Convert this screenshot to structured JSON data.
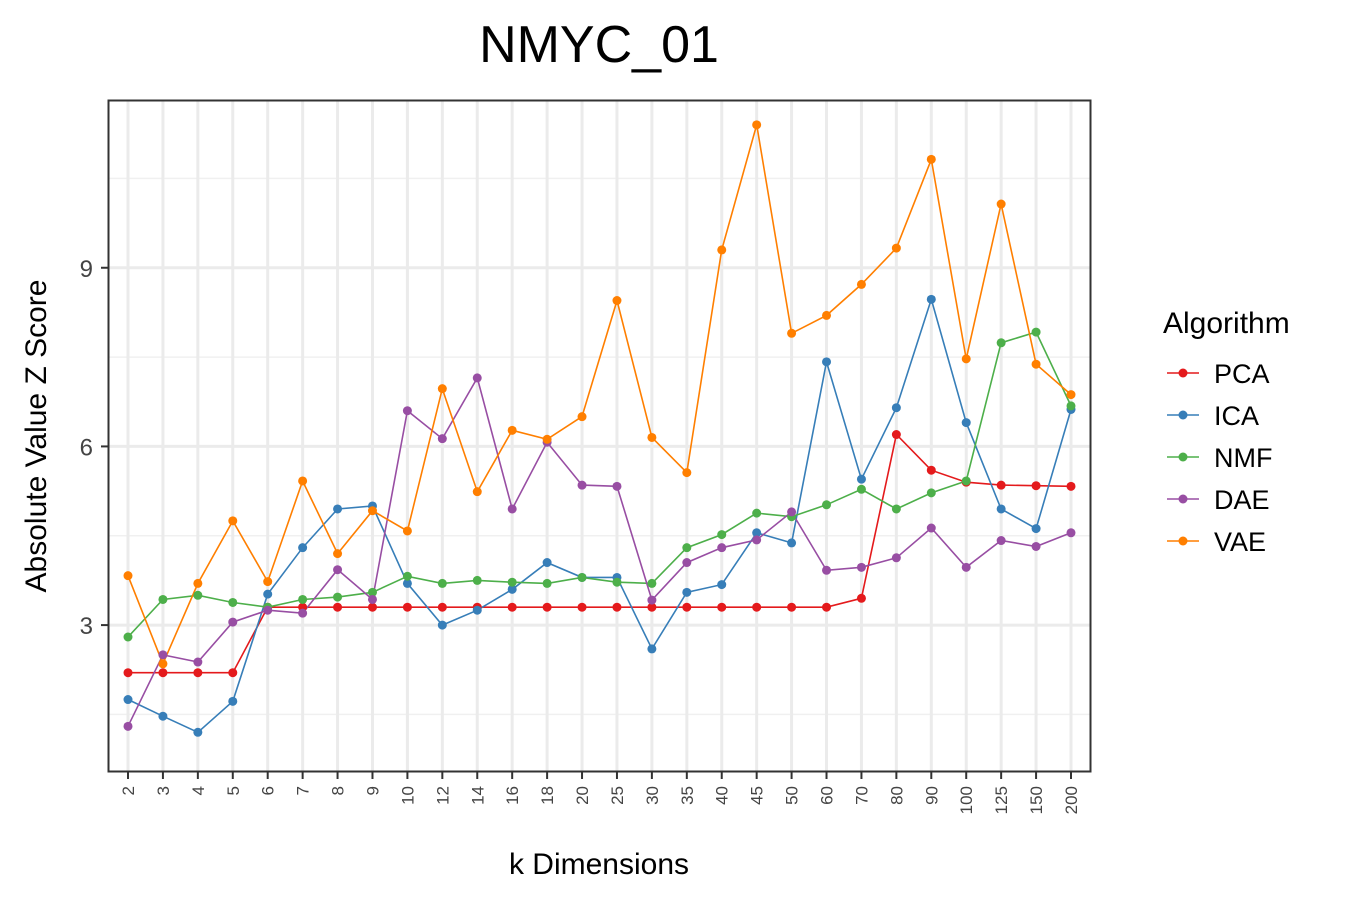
{
  "chart_data": {
    "type": "line",
    "title": "NMYC_01",
    "xlabel": "k Dimensions",
    "ylabel": "Absolute Value Z Score",
    "categories": [
      "2",
      "3",
      "4",
      "5",
      "6",
      "7",
      "8",
      "9",
      "10",
      "12",
      "14",
      "16",
      "18",
      "20",
      "25",
      "30",
      "35",
      "40",
      "45",
      "50",
      "60",
      "70",
      "80",
      "90",
      "100",
      "125",
      "150",
      "200"
    ],
    "ylim": [
      0.55,
      11.8
    ],
    "yticks": [
      3,
      6,
      9
    ],
    "grid": true,
    "legend": {
      "title": "Algorithm",
      "position": "right"
    },
    "series": [
      {
        "name": "PCA",
        "color": "#E41A1C",
        "values": [
          2.2,
          2.2,
          2.2,
          2.2,
          3.3,
          3.3,
          3.3,
          3.3,
          3.3,
          3.3,
          3.3,
          3.3,
          3.3,
          3.3,
          3.3,
          3.3,
          3.3,
          3.3,
          3.3,
          3.3,
          3.3,
          3.45,
          6.2,
          5.6,
          5.4,
          5.35,
          5.34,
          5.33
        ]
      },
      {
        "name": "ICA",
        "color": "#377EB8",
        "values": [
          1.75,
          1.47,
          1.2,
          1.72,
          3.52,
          4.3,
          4.95,
          5.0,
          3.7,
          3.0,
          3.25,
          3.6,
          4.05,
          3.8,
          3.8,
          2.6,
          3.55,
          3.68,
          4.55,
          4.38,
          7.42,
          5.45,
          6.65,
          8.47,
          6.4,
          4.95,
          4.62,
          6.62
        ]
      },
      {
        "name": "NMF",
        "color": "#4DAF4A",
        "values": [
          2.8,
          3.43,
          3.5,
          3.38,
          3.3,
          3.43,
          3.47,
          3.55,
          3.82,
          3.7,
          3.75,
          3.72,
          3.7,
          3.8,
          3.72,
          3.7,
          4.3,
          4.52,
          4.88,
          4.82,
          5.02,
          5.28,
          4.95,
          5.22,
          5.42,
          7.74,
          7.92,
          6.68
        ]
      },
      {
        "name": "DAE",
        "color": "#984EA3",
        "values": [
          1.3,
          2.5,
          2.38,
          3.05,
          3.25,
          3.2,
          3.93,
          3.43,
          6.6,
          6.13,
          7.15,
          4.95,
          6.07,
          5.35,
          5.33,
          3.42,
          4.05,
          4.3,
          4.43,
          4.9,
          3.92,
          3.97,
          4.13,
          4.63,
          3.97,
          4.42,
          4.32,
          4.55
        ]
      },
      {
        "name": "VAE",
        "color": "#FF7F00",
        "values": [
          3.83,
          2.35,
          3.7,
          4.75,
          3.73,
          5.42,
          4.2,
          4.92,
          4.58,
          6.97,
          5.24,
          6.27,
          6.12,
          6.5,
          8.45,
          6.15,
          5.56,
          9.3,
          11.4,
          7.9,
          8.2,
          8.72,
          9.33,
          10.82,
          7.47,
          10.07,
          7.38,
          6.87
        ]
      }
    ]
  }
}
